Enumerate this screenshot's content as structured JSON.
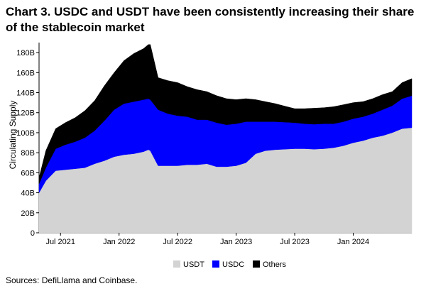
{
  "title": "Chart 3. USDC and USDT have been consistently increasing their share of the stablecoin market",
  "source": "Sources: DefiLlama and Coinbase.",
  "chart_data": {
    "type": "area",
    "stacked": true,
    "title": "Chart 3. USDC and USDT have been consistently increasing their share of the stablecoin market",
    "xlabel": "",
    "ylabel": "Circulating Supply",
    "x_unit": "months since Jan 2021",
    "xlim": [
      3.8,
      42
    ],
    "ylim": [
      0,
      190
    ],
    "yticks": [
      0,
      20,
      40,
      60,
      80,
      100,
      120,
      140,
      160,
      180
    ],
    "ytick_labels": [
      "0",
      "20B",
      "40B",
      "60B",
      "80B",
      "100B",
      "120B",
      "140B",
      "160B",
      "180B"
    ],
    "xticks": [
      6,
      12,
      18,
      24,
      30,
      36
    ],
    "xtick_labels": [
      "Jul 2021",
      "Jan 2022",
      "Jul 2022",
      "Jan 2023",
      "Jul 2023",
      "Jan 2024"
    ],
    "x": [
      3.8,
      4.5,
      5.5,
      6.5,
      7.5,
      8.5,
      9.5,
      10.5,
      11.5,
      12.5,
      13.5,
      14.5,
      15.0,
      15.2,
      16.0,
      17.0,
      18.0,
      19.0,
      20.0,
      21.0,
      22.0,
      23.0,
      24.0,
      25.0,
      26.0,
      27.0,
      28.0,
      29.0,
      30.0,
      31.0,
      32.0,
      33.0,
      34.0,
      35.0,
      36.0,
      37.0,
      38.0,
      39.0,
      40.0,
      41.0,
      42.0
    ],
    "series": [
      {
        "name": "USDT",
        "color": "#d3d3d3",
        "values": [
          40,
          52,
          62,
          63,
          64,
          65,
          69,
          72,
          76,
          78,
          79,
          81,
          83,
          82,
          67,
          67,
          67,
          68,
          68,
          69,
          66,
          66,
          67,
          70,
          79,
          82,
          83,
          83.5,
          84,
          84,
          83.5,
          84,
          85,
          87,
          90,
          92,
          95,
          97,
          100,
          104,
          105
        ]
      },
      {
        "name": "USDC",
        "color": "#0000ff",
        "values": [
          9,
          13,
          22,
          25,
          27,
          30,
          33,
          40,
          47,
          51,
          52,
          52,
          51,
          51,
          56,
          52,
          50,
          48,
          45,
          44,
          44,
          42,
          42,
          41,
          32,
          29,
          28,
          27,
          26,
          25,
          25,
          25,
          24,
          24,
          24,
          24,
          24,
          26,
          27,
          30,
          32
        ]
      },
      {
        "name": "Others",
        "color": "#000000",
        "values": [
          6,
          17,
          20,
          22,
          24,
          27,
          30,
          35,
          37,
          43,
          48,
          51,
          54,
          55,
          32,
          33,
          33,
          30,
          30,
          28,
          27,
          26,
          24,
          23,
          22,
          20,
          18,
          16,
          14,
          15,
          16,
          16,
          17,
          17,
          16,
          15,
          15,
          15,
          14,
          16,
          17
        ]
      }
    ],
    "legend": {
      "position": "bottom",
      "items": [
        "USDT",
        "USDC",
        "Others"
      ]
    }
  }
}
